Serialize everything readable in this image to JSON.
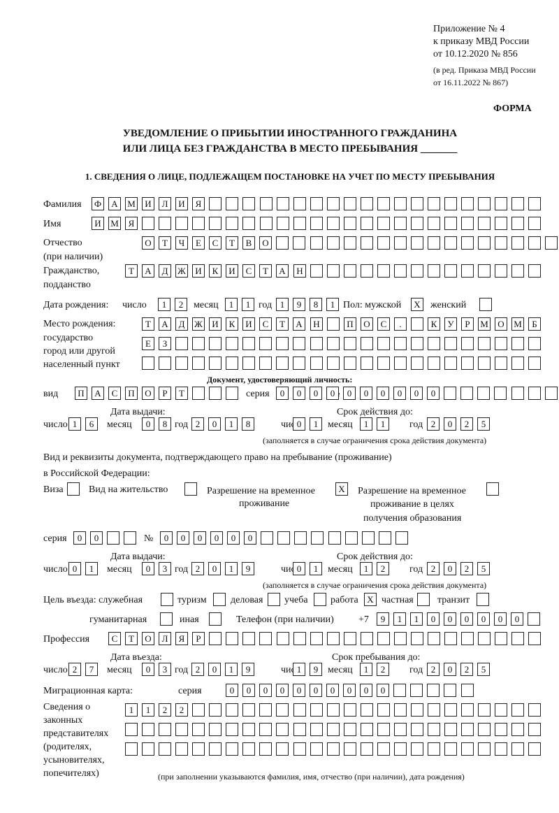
{
  "header": {
    "appendix": "Приложение № 4",
    "order": "к приказу МВД России",
    "order_date": "от 10.12.2020 № 856",
    "edition": "(в ред. Приказа МВД России",
    "edition_date": "от 16.11.2022 № 867)",
    "form_label": "ФОРМА",
    "title_line1": "УВЕДОМЛЕНИЕ О ПРИБЫТИИ ИНОСТРАННОГО ГРАЖДАНИНА",
    "title_line2": "ИЛИ ЛИЦА БЕЗ ГРАЖДАНСТВА В МЕСТО ПРЕБЫВАНИЯ _______",
    "section1": "1. СВЕДЕНИЯ О ЛИЦЕ, ПОДЛЕЖАЩЕМ ПОСТАНОВКЕ НА УЧЕТ ПО МЕСТУ ПРЕБЫВАНИЯ"
  },
  "labels": {
    "surname": "Фамилия",
    "name": "Имя",
    "patronymic": "Отчество",
    "patronymic2": "(при наличии)",
    "citizenship": "Гражданство,",
    "citizenship2": "подданство",
    "dob": "Дата рождения:",
    "day": "число",
    "month": "месяц",
    "year": "год",
    "sex": "Пол: мужской",
    "female": "женский",
    "pob": "Место рождения:",
    "pob2": "государство",
    "pob3": "город или другой",
    "pob4": "населенный пункт",
    "id_doc": "Документ, удостоверяющий личность:",
    "kind": "вид",
    "series": "серия",
    "number": "№",
    "issue_date": "Дата выдачи:",
    "valid_until": "Срок действия до:",
    "valid_note": "(заполняется в случае ограничения срока действия документа)",
    "stay_doc1": "Вид и реквизиты документа, подтверждающего право на пребывание (проживание)",
    "stay_doc2": "в Российской Федерации:",
    "visa": "Виза",
    "residence": "Вид на жительство",
    "temp_res1": "Разрешение на временное",
    "temp_res2": "проживание",
    "temp_edu1": "Разрешение на временное",
    "temp_edu2": "проживание в целях",
    "temp_edu3": "получения образования",
    "purpose": "Цель въезда: служебная",
    "tourism": "туризм",
    "business": "деловая",
    "study": "учеба",
    "work": "работа",
    "private": "частная",
    "transit": "транзит",
    "humanitarian": "гуманитарная",
    "other": "иная",
    "phone": "Телефон (при наличии)",
    "phone_prefix": "+7",
    "profession": "Профессия",
    "entry_date": "Дата въезда:",
    "stay_until": "Срок пребывания до:",
    "migration_card": "Миграционная карта:",
    "reps1": "Сведения о",
    "reps2": "законных",
    "reps3": "представителях",
    "reps4": "(родителях,",
    "reps5": "усыновителях,",
    "reps6": "попечителях)",
    "reps_note": "(при заполнении указываются фамилия, имя, отчество (при наличии), дата рождения)"
  },
  "fields": {
    "surname": [
      "Ф",
      "А",
      "М",
      "И",
      "Л",
      "И",
      "Я",
      "",
      "",
      "",
      "",
      "",
      "",
      "",
      "",
      "",
      "",
      "",
      "",
      "",
      "",
      "",
      "",
      "",
      "",
      "",
      ""
    ],
    "name": [
      "И",
      "М",
      "Я",
      "",
      "",
      "",
      "",
      "",
      "",
      "",
      "",
      "",
      "",
      "",
      "",
      "",
      "",
      "",
      "",
      "",
      "",
      "",
      "",
      "",
      "",
      "",
      ""
    ],
    "patronymic": [
      "О",
      "Т",
      "Ч",
      "Е",
      "С",
      "Т",
      "В",
      "О",
      "",
      "",
      "",
      "",
      "",
      "",
      "",
      "",
      "",
      "",
      "",
      "",
      "",
      "",
      "",
      "",
      ""
    ],
    "citizenship": [
      "Т",
      "А",
      "Д",
      "Ж",
      "И",
      "К",
      "И",
      "С",
      "Т",
      "А",
      "Н",
      "",
      "",
      "",
      "",
      "",
      "",
      "",
      "",
      "",
      "",
      "",
      "",
      "",
      ""
    ],
    "dob_day": [
      "1",
      "2"
    ],
    "dob_month": [
      "1",
      "1"
    ],
    "dob_year": [
      "1",
      "9",
      "8",
      "1"
    ],
    "sex_male": [
      "X"
    ],
    "sex_female": [
      ""
    ],
    "pob_row1": [
      "Т",
      "А",
      "Д",
      "Ж",
      "И",
      "К",
      "И",
      "С",
      "Т",
      "А",
      "Н",
      "",
      "П",
      "О",
      "С",
      ".",
      "",
      "К",
      "У",
      "Р",
      "М",
      "О",
      "М",
      "Б"
    ],
    "pob_row2": [
      "Е",
      "З",
      "",
      "",
      "",
      "",
      "",
      "",
      "",
      "",
      "",
      "",
      "",
      "",
      "",
      "",
      "",
      "",
      "",
      "",
      "",
      "",
      "",
      ""
    ],
    "pob_row3": [
      "",
      "",
      "",
      "",
      "",
      "",
      "",
      "",
      "",
      "",
      "",
      "",
      "",
      "",
      "",
      "",
      "",
      "",
      "",
      "",
      "",
      "",
      "",
      ""
    ],
    "id_kind": [
      "П",
      "А",
      "С",
      "П",
      "О",
      "Р",
      "Т",
      "",
      "",
      ""
    ],
    "id_series": [
      "0",
      "0",
      "0",
      "0"
    ],
    "id_number": [
      "0",
      "0",
      "0",
      "0",
      "0",
      "0",
      "",
      "",
      "",
      "",
      "",
      "",
      ""
    ],
    "id_issue_day": [
      "1",
      "6"
    ],
    "id_issue_month": [
      "0",
      "8"
    ],
    "id_issue_year": [
      "2",
      "0",
      "1",
      "8"
    ],
    "id_valid_day": [
      "0",
      "1"
    ],
    "id_valid_month": [
      "1",
      "1"
    ],
    "id_valid_year": [
      "2",
      "0",
      "2",
      "5"
    ],
    "visa": [
      ""
    ],
    "residence": [
      ""
    ],
    "temp_res": [
      "X"
    ],
    "temp_edu": [
      ""
    ],
    "stay_series": [
      "0",
      "0",
      "",
      ""
    ],
    "stay_number": [
      "0",
      "0",
      "0",
      "0",
      "0",
      "0",
      "",
      "",
      "",
      "",
      "",
      "",
      "",
      "",
      ""
    ],
    "stay_issue_day": [
      "0",
      "1"
    ],
    "stay_issue_month": [
      "0",
      "3"
    ],
    "stay_issue_year": [
      "2",
      "0",
      "1",
      "9"
    ],
    "stay_valid_day": [
      "0",
      "1"
    ],
    "stay_valid_month": [
      "1",
      "2"
    ],
    "stay_valid_year": [
      "2",
      "0",
      "2",
      "5"
    ],
    "p_service": [
      ""
    ],
    "p_tourism": [
      ""
    ],
    "p_business": [
      ""
    ],
    "p_study": [
      ""
    ],
    "p_work": [
      "X"
    ],
    "p_private": [
      ""
    ],
    "p_transit": [
      ""
    ],
    "p_humanitarian": [
      ""
    ],
    "p_other": [
      ""
    ],
    "phone": [
      "9",
      "1",
      "1",
      "0",
      "0",
      "0",
      "0",
      "0",
      "0",
      ""
    ],
    "profession": [
      "С",
      "Т",
      "О",
      "Л",
      "Я",
      "Р",
      "",
      "",
      "",
      "",
      "",
      "",
      "",
      "",
      "",
      "",
      "",
      "",
      "",
      "",
      "",
      "",
      "",
      "",
      "",
      ""
    ],
    "entry_day": [
      "2",
      "7"
    ],
    "entry_month": [
      "0",
      "3"
    ],
    "entry_year": [
      "2",
      "0",
      "1",
      "9"
    ],
    "stay_day": [
      "1",
      "9"
    ],
    "stay_month": [
      "1",
      "2"
    ],
    "stay_year": [
      "2",
      "0",
      "2",
      "5"
    ],
    "mc_series": [
      "0",
      "0",
      "0",
      "0"
    ],
    "mc_number": [
      "0",
      "0",
      "0",
      "0",
      "0",
      "0",
      "",
      "",
      "",
      "",
      ""
    ],
    "reps_row1": [
      "1",
      "1",
      "2",
      "2",
      "",
      "",
      "",
      "",
      "",
      "",
      "",
      "",
      "",
      "",
      "",
      "",
      "",
      "",
      "",
      "",
      "",
      "",
      "",
      "",
      ""
    ],
    "reps_row2": [
      "",
      "",
      "",
      "",
      "",
      "",
      "",
      "",
      "",
      "",
      "",
      "",
      "",
      "",
      "",
      "",
      "",
      "",
      "",
      "",
      "",
      "",
      "",
      "",
      ""
    ],
    "reps_row3": [
      "",
      "",
      "",
      "",
      "",
      "",
      "",
      "",
      "",
      "",
      "",
      "",
      "",
      "",
      "",
      "",
      "",
      "",
      "",
      "",
      "",
      "",
      "",
      "",
      ""
    ]
  }
}
